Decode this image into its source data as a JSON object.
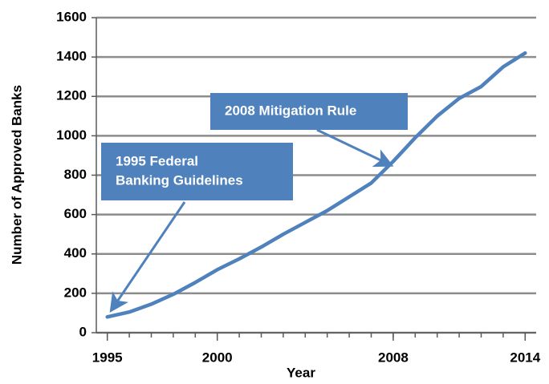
{
  "chart_data": {
    "type": "line",
    "xlabel": "Year",
    "ylabel": "Number of Approved Banks",
    "x": [
      1995,
      1996,
      1997,
      1998,
      1999,
      2000,
      2001,
      2002,
      2003,
      2004,
      2005,
      2006,
      2007,
      2008,
      2009,
      2010,
      2011,
      2012,
      2013,
      2014
    ],
    "series": [
      {
        "color": "#4f81bd",
        "values": [
          80,
          105,
          145,
          195,
          255,
          320,
          375,
          435,
          500,
          560,
          620,
          690,
          760,
          870,
          990,
          1100,
          1190,
          1250,
          1350,
          1420
        ]
      }
    ],
    "xlim": [
      1994.5,
      2014.5
    ],
    "xticks": [
      1995,
      2000,
      2008,
      2014
    ],
    "ylim": [
      0,
      1600
    ],
    "yticks": [
      0,
      200,
      400,
      600,
      800,
      1000,
      1200,
      1400,
      1600
    ],
    "grid": true,
    "annotations": [
      {
        "lines": [
          "1995 Federal",
          "Banking Guidelines"
        ],
        "color": "#4f81bd"
      },
      {
        "lines": [
          "2008 Mitigation Rule"
        ],
        "color": "#4f81bd"
      }
    ]
  }
}
